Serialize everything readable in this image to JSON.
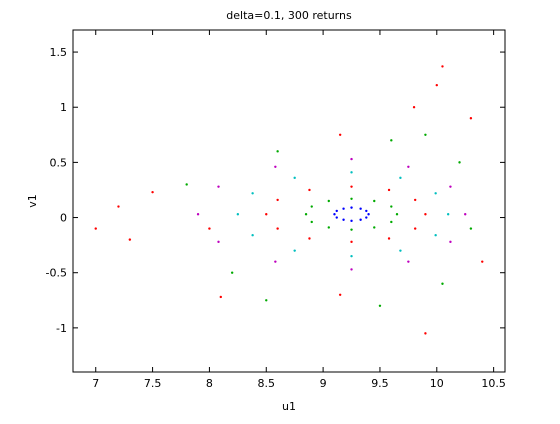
{
  "chart_data": {
    "type": "scatter",
    "title": "delta=0.1, 300 returns",
    "x_label": "u1",
    "y_label": "v1",
    "xlim": [
      6.8,
      10.6
    ],
    "ylim": [
      -1.4,
      1.7
    ],
    "xticks": [
      7,
      7.5,
      8,
      8.5,
      9,
      9.5,
      10,
      10.5
    ],
    "yticks": [
      -1,
      -0.5,
      0,
      0.5,
      1,
      1.5
    ],
    "series": [
      {
        "color": "#0000ff",
        "x": [
          9.4,
          9.38,
          9.33,
          9.25,
          9.18,
          9.12,
          9.1,
          9.12,
          9.18,
          9.25,
          9.33,
          9.38
        ],
        "values": [
          0.03,
          0.06,
          0.08,
          0.09,
          0.08,
          0.06,
          0.03,
          0,
          -0.02,
          -0.03,
          -0.02,
          0
        ]
      },
      {
        "color": "#00aa00",
        "x": [
          9.65,
          9.6,
          9.45,
          9.25,
          9.05,
          8.9,
          8.85,
          8.9,
          9.05,
          9.25,
          9.45,
          9.6
        ],
        "values": [
          0.03,
          0.1,
          0.15,
          0.17,
          0.15,
          0.1,
          0.03,
          -0.04,
          -0.09,
          -0.11,
          -0.09,
          -0.04
        ]
      },
      {
        "color": "#ff0000",
        "x": [
          9.9,
          9.81,
          9.58,
          9.25,
          8.88,
          8.6,
          8.5,
          8.6,
          8.88,
          9.25,
          9.58,
          9.81
        ],
        "values": [
          0.03,
          0.16,
          0.25,
          0.28,
          0.25,
          0.16,
          0.03,
          -0.1,
          -0.19,
          -0.22,
          -0.19,
          -0.1
        ]
      },
      {
        "color": "#00bfbf",
        "x": [
          10.1,
          9.99,
          9.68,
          9.25,
          8.75,
          8.38,
          8.25,
          8.38,
          8.75,
          9.25,
          9.68,
          9.99
        ],
        "values": [
          0.03,
          0.22,
          0.36,
          0.41,
          0.36,
          0.22,
          0.03,
          -0.16,
          -0.3,
          -0.35,
          -0.3,
          -0.16
        ]
      },
      {
        "color": "#bf00bf",
        "x": [
          10.25,
          10.12,
          9.75,
          9.25,
          8.58,
          8.08,
          7.9,
          8.08,
          8.58,
          9.25,
          9.75,
          10.12
        ],
        "values": [
          0.03,
          0.28,
          0.46,
          0.53,
          0.46,
          0.28,
          0.03,
          -0.22,
          -0.4,
          -0.47,
          -0.4,
          -0.22
        ]
      },
      {
        "color": "#ff0000",
        "x": [
          10,
          9.8,
          10.05,
          9.15,
          9.15,
          8.1,
          7.5,
          7.3,
          7.0,
          9.9,
          10.3,
          7.2,
          10.4,
          8.0
        ],
        "values": [
          1.2,
          1.0,
          1.37,
          0.75,
          -0.7,
          -0.72,
          0.23,
          -0.2,
          -0.1,
          -1.05,
          0.9,
          0.1,
          -0.4,
          -0.1
        ]
      },
      {
        "color": "#00aa00",
        "x": [
          10.05,
          10.2,
          9.6,
          8.6,
          8.2,
          9.5,
          10.3,
          7.8,
          8.5,
          9.9
        ],
        "values": [
          -0.6,
          0.5,
          0.7,
          0.6,
          -0.5,
          -0.8,
          -0.1,
          0.3,
          -0.75,
          0.75
        ]
      }
    ]
  }
}
